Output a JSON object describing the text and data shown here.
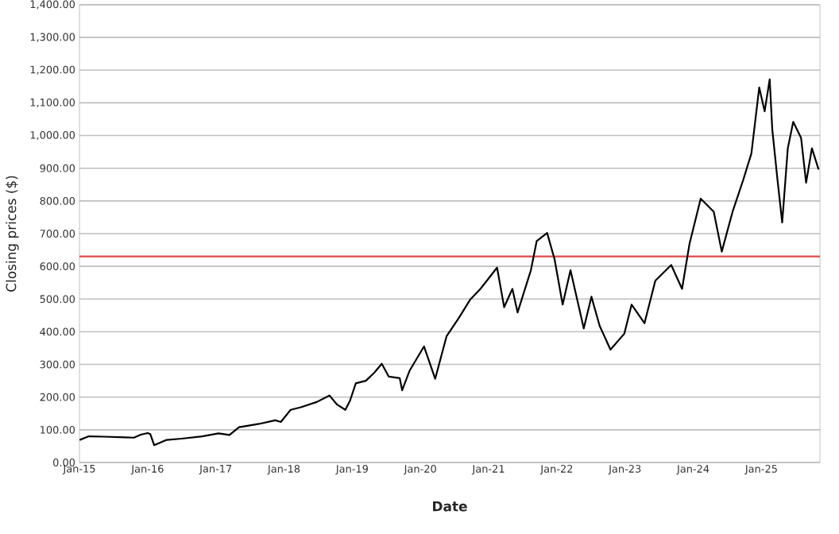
{
  "chart_data": {
    "type": "line",
    "xlabel": "Date",
    "ylabel": "Closing prices ($)",
    "x": [
      "2015-01-02",
      "2015-02-20",
      "2015-05-10",
      "2015-09-01",
      "2015-10-20",
      "2015-11-25",
      "2016-01-01",
      "2016-01-15",
      "2016-02-05",
      "2016-04-12",
      "2016-07-01",
      "2016-10-20",
      "2017-01-15",
      "2017-03-15",
      "2017-05-05",
      "2017-08-20",
      "2017-11-15",
      "2017-12-15",
      "2018-02-05",
      "2018-04-01",
      "2018-06-25",
      "2018-09-01",
      "2018-10-12",
      "2018-11-25",
      "2018-12-20",
      "2019-01-20",
      "2019-03-15",
      "2019-04-28",
      "2019-06-08",
      "2019-07-15",
      "2019-09-12",
      "2019-09-25",
      "2019-11-05",
      "2020-01-20",
      "2020-03-20",
      "2020-05-20",
      "2020-07-25",
      "2020-09-25",
      "2020-11-18",
      "2021-02-15",
      "2021-03-25",
      "2021-05-08",
      "2021-06-05",
      "2021-08-15",
      "2021-09-15",
      "2021-11-10",
      "2021-12-20",
      "2022-02-01",
      "2022-03-15",
      "2022-05-25",
      "2022-07-05",
      "2022-08-18",
      "2022-10-15",
      "2022-12-28",
      "2023-02-05",
      "2023-04-15",
      "2023-06-12",
      "2023-09-05",
      "2023-11-02",
      "2023-12-12",
      "2024-02-10",
      "2024-04-20",
      "2024-06-02",
      "2024-07-30",
      "2024-09-25",
      "2024-11-08",
      "2024-12-20",
      "2025-01-18",
      "2025-02-14",
      "2025-02-28",
      "2025-03-28",
      "2025-04-22",
      "2025-05-22",
      "2025-06-20",
      "2025-08-01",
      "2025-08-28",
      "2025-09-28",
      "2025-11-03"
    ],
    "series": [
      {
        "color": "#000000",
        "values": [
          69,
          80,
          79,
          77,
          76,
          85,
          90,
          87,
          53,
          69,
          73,
          80,
          89,
          84,
          108,
          118,
          129,
          124,
          161,
          169,
          185,
          205,
          177,
          161,
          189,
          242,
          250,
          274,
          302,
          263,
          258,
          221,
          282,
          355,
          256,
          386,
          442,
          499,
          531,
          596,
          475,
          531,
          459,
          588,
          677,
          702,
          621,
          483,
          588,
          410,
          507,
          418,
          345,
          394,
          483,
          426,
          556,
          604,
          531,
          669,
          807,
          767,
          645,
          767,
          864,
          945,
          1147,
          1074,
          1172,
          1018,
          864,
          734,
          961,
          1042,
          993,
          856,
          961,
          896
        ]
      }
    ],
    "xlim": [
      "2015-01-01",
      "2025-11-10"
    ],
    "xticks": [
      {
        "value": "2015-01-01",
        "label": "Jan-15"
      },
      {
        "value": "2016-01-01",
        "label": "Jan-16"
      },
      {
        "value": "2017-01-01",
        "label": "Jan-17"
      },
      {
        "value": "2018-01-01",
        "label": "Jan-18"
      },
      {
        "value": "2019-01-01",
        "label": "Jan-19"
      },
      {
        "value": "2020-01-01",
        "label": "Jan-20"
      },
      {
        "value": "2021-01-01",
        "label": "Jan-21"
      },
      {
        "value": "2022-01-01",
        "label": "Jan-22"
      },
      {
        "value": "2023-01-01",
        "label": "Jan-23"
      },
      {
        "value": "2024-01-01",
        "label": "Jan-24"
      },
      {
        "value": "2025-01-01",
        "label": "Jan-25"
      }
    ],
    "ylim": [
      0,
      1400
    ],
    "yticks": [
      {
        "value": 0,
        "label": "0.00"
      },
      {
        "value": 100,
        "label": "100.00"
      },
      {
        "value": 200,
        "label": "200.00"
      },
      {
        "value": 300,
        "label": "300.00"
      },
      {
        "value": 400,
        "label": "400.00"
      },
      {
        "value": 500,
        "label": "500.00"
      },
      {
        "value": 600,
        "label": "600.00"
      },
      {
        "value": 700,
        "label": "700.00"
      },
      {
        "value": 800,
        "label": "800.00"
      },
      {
        "value": 900,
        "label": "900.00"
      },
      {
        "value": 1000,
        "label": "1,000.00"
      },
      {
        "value": 1100,
        "label": "1,100.00"
      },
      {
        "value": 1200,
        "label": "1,200.00"
      },
      {
        "value": 1300,
        "label": "1,300.00"
      },
      {
        "value": 1400,
        "label": "1,400.00"
      }
    ],
    "ref_lines": [
      {
        "axis": "y",
        "value": 630,
        "color": "#e05a5a"
      }
    ],
    "grid": "y",
    "marker": "none",
    "line_style": "solid"
  }
}
